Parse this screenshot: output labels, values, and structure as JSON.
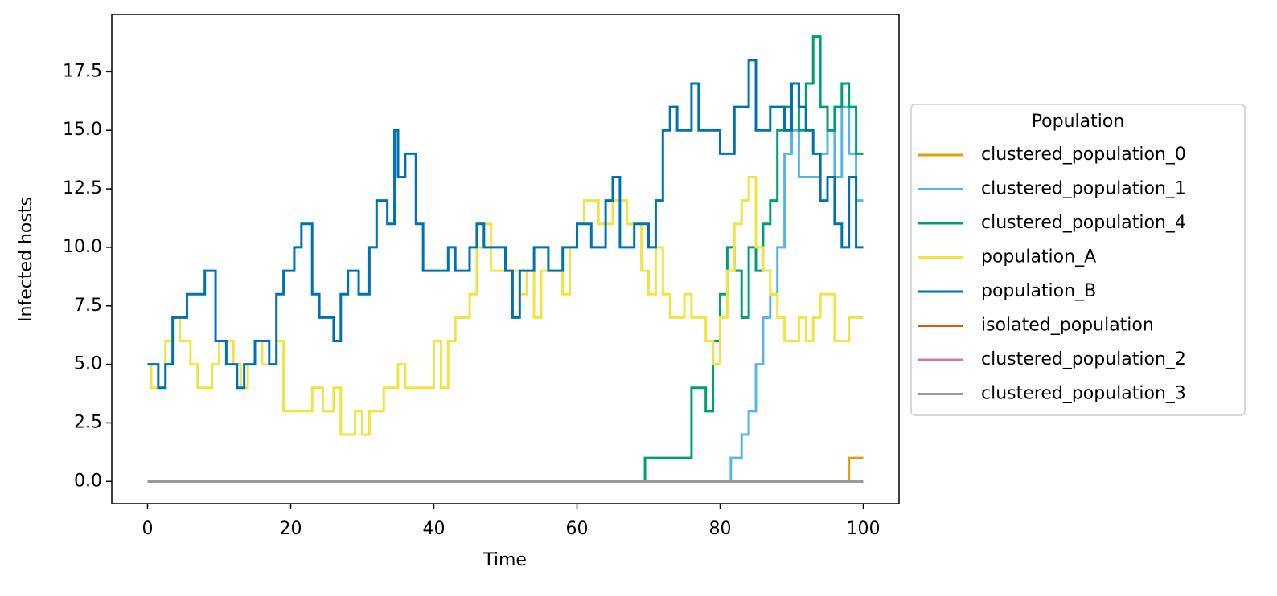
{
  "chart_data": {
    "type": "line",
    "drawstyle": "steps-post",
    "x_label": "Time",
    "y_label": "Infected hosts",
    "xlim": [
      -5,
      105
    ],
    "ylim": [
      -0.95,
      19.95
    ],
    "xticks": [
      0,
      20,
      40,
      60,
      80,
      100
    ],
    "yticks": [
      {
        "value": 0,
        "label": "0.0"
      },
      2.5,
      {
        "value": 5,
        "label": "5.0"
      },
      7.5,
      {
        "value": 10,
        "label": "10.0"
      },
      12.5,
      {
        "value": 15,
        "label": "15.0"
      },
      17.5
    ],
    "legend_title": "Population",
    "legend_position": "right",
    "series": [
      {
        "name": "clustered_population_0",
        "color": "#e69f00",
        "x": [
          0,
          98,
          100
        ],
        "values": [
          0,
          1,
          1
        ]
      },
      {
        "name": "clustered_population_1",
        "color": "#56b4e9",
        "x": [
          0,
          81.5,
          83,
          84,
          85,
          86,
          87,
          88,
          89,
          90,
          91,
          94,
          95,
          96,
          97,
          98,
          99,
          100
        ],
        "values": [
          0,
          1,
          2,
          3,
          5,
          7,
          8,
          10,
          14,
          15,
          13,
          14,
          15,
          13,
          16,
          14,
          12,
          12
        ]
      },
      {
        "name": "clustered_population_4",
        "color": "#009e73",
        "x": [
          0,
          69.5,
          76,
          78,
          79,
          80,
          81,
          82,
          83,
          84,
          85,
          86,
          87,
          88,
          89,
          90,
          91,
          92,
          93,
          94,
          95,
          96,
          97,
          98,
          99,
          100
        ],
        "values": [
          0,
          1,
          4,
          3,
          6,
          8,
          10,
          9,
          7,
          10,
          9,
          11,
          12,
          15,
          16,
          17,
          15,
          17,
          19,
          16,
          15,
          16,
          17,
          16,
          14,
          14
        ]
      },
      {
        "name": "population_A",
        "color": "#f0e442",
        "x": [
          0,
          0.5,
          2.5,
          3.5,
          4.5,
          6,
          7,
          9,
          10,
          12,
          13,
          14,
          15,
          16,
          18,
          19,
          23,
          24.5,
          26,
          27,
          29,
          30,
          31,
          33,
          35,
          36,
          40,
          41,
          42,
          43,
          45,
          46,
          47,
          48,
          52,
          53,
          54,
          55,
          58,
          59,
          60,
          61,
          63,
          65,
          67,
          69,
          70,
          71,
          72,
          73,
          75,
          76,
          78,
          79,
          80,
          81,
          82,
          83,
          84,
          85,
          86,
          87,
          88,
          89,
          91,
          92,
          93,
          94,
          96,
          98,
          100
        ],
        "values": [
          5,
          4,
          6,
          7,
          6,
          5,
          4,
          5,
          6,
          5,
          4,
          5,
          6,
          5,
          6,
          3,
          4,
          3,
          4,
          2,
          3,
          2,
          3,
          4,
          5,
          4,
          6,
          4,
          6,
          7,
          8,
          10,
          11,
          9,
          8,
          9,
          7,
          9,
          8,
          10,
          11,
          12,
          11,
          12,
          11,
          9,
          8,
          10,
          8,
          7,
          8,
          7,
          6,
          5,
          7,
          9,
          11,
          12,
          13,
          10,
          9,
          8,
          7,
          6,
          7,
          6,
          7,
          8,
          6,
          7,
          7
        ]
      },
      {
        "name": "population_B",
        "color": "#0072b2",
        "x": [
          0,
          1.5,
          2.5,
          3.5,
          5.5,
          8,
          9.5,
          11,
          12.5,
          13.5,
          15,
          17,
          18,
          19,
          20.5,
          21.5,
          23,
          24,
          26,
          27,
          28,
          29.5,
          31,
          32,
          33.5,
          34.5,
          35,
          36,
          37.5,
          38.5,
          42,
          43,
          45,
          46,
          47,
          50,
          51,
          52,
          54,
          56,
          58,
          60,
          62,
          64,
          65,
          66,
          68,
          70,
          71,
          72,
          73,
          74,
          76,
          77,
          80,
          82,
          84,
          85,
          87,
          89,
          90,
          91,
          92,
          93,
          94,
          95,
          96,
          97,
          98,
          99,
          100
        ],
        "values": [
          5,
          4,
          5,
          7,
          8,
          9,
          6,
          5,
          4,
          5,
          6,
          5,
          8,
          9,
          10,
          11,
          8,
          7,
          6,
          8,
          9,
          8,
          10,
          12,
          11,
          15,
          13,
          14,
          11,
          9,
          10,
          9,
          10,
          11,
          10,
          9,
          7,
          9,
          10,
          9,
          10,
          11,
          10,
          12,
          13,
          10,
          11,
          10,
          12,
          15,
          16,
          15,
          17,
          15,
          14,
          16,
          18,
          15,
          16,
          15,
          17,
          16,
          15,
          14,
          12,
          13,
          11,
          10,
          13,
          10,
          10
        ]
      },
      {
        "name": "isolated_population",
        "color": "#d55e00",
        "x": [
          0,
          100
        ],
        "values": [
          0,
          0
        ]
      },
      {
        "name": "clustered_population_2",
        "color": "#cc79a7",
        "x": [
          0,
          100
        ],
        "values": [
          0,
          0
        ]
      },
      {
        "name": "clustered_population_3",
        "color": "#999999",
        "x": [
          0,
          100
        ],
        "values": [
          0,
          0
        ]
      }
    ]
  }
}
